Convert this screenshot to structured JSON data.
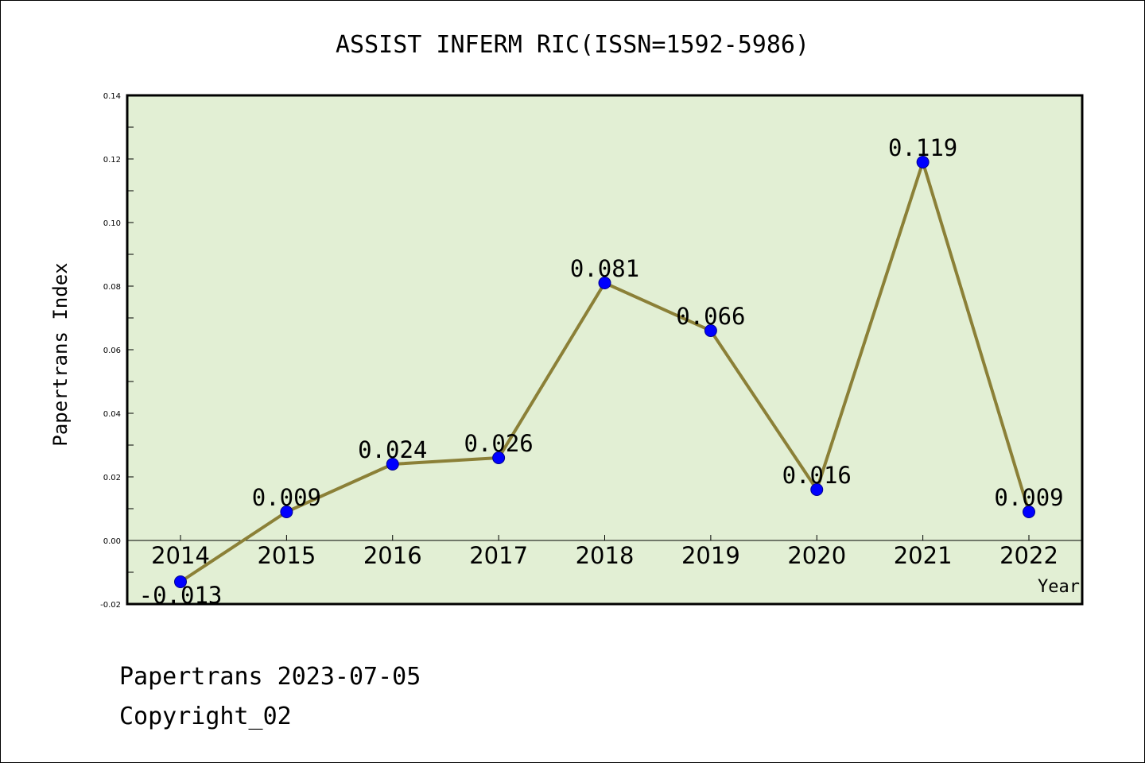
{
  "footer": {
    "line1": "Papertrans 2023-07-05",
    "line2": "Copyright_02"
  },
  "colors": {
    "plot_background": "#e2efd4",
    "line": "#8b8037",
    "marker": "#0000ff"
  },
  "chart_data": {
    "type": "line",
    "title": "ASSIST INFERM RIC(ISSN=1592-5986)",
    "xlabel": "Year",
    "ylabel": "Papertrans Index",
    "categories": [
      "2014",
      "2015",
      "2016",
      "2017",
      "2018",
      "2019",
      "2020",
      "2021",
      "2022"
    ],
    "series": [
      {
        "values": [
          -0.013,
          0.009,
          0.024,
          0.026,
          0.081,
          0.066,
          0.016,
          0.119,
          0.009
        ],
        "labels": [
          "-0.013",
          "0.009",
          "0.024",
          "0.026",
          "0.081",
          "0.066",
          "0.016",
          "0.119",
          "0.009"
        ]
      }
    ],
    "ylim": [
      -0.02,
      0.14
    ],
    "yticks": [
      -0.02,
      0.0,
      0.02,
      0.04,
      0.06,
      0.08,
      0.1,
      0.12,
      0.14
    ],
    "ytick_labels": [
      "-0.02",
      "0.00",
      "0.02",
      "0.04",
      "0.06",
      "0.08",
      "0.10",
      "0.12",
      "0.14"
    ],
    "grid": false,
    "legend": "none"
  }
}
